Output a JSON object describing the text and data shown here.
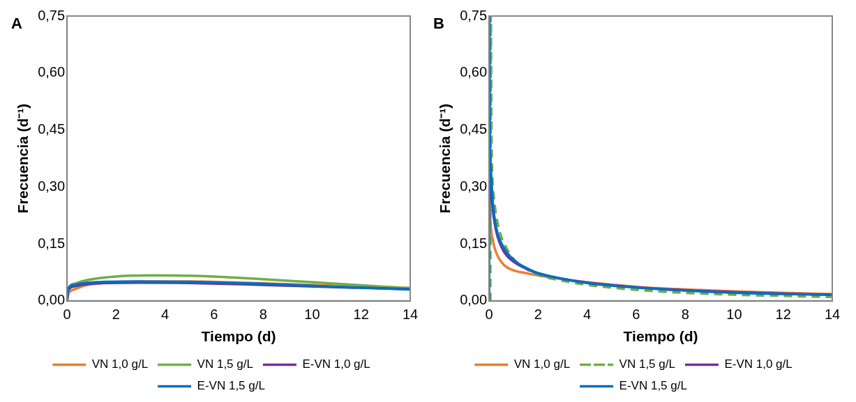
{
  "chart_data": [
    {
      "type": "line",
      "annotations": [
        "A"
      ],
      "xlabel": "Tiempo (d)",
      "ylabel": "Frecuencia (d⁻¹)",
      "xlim": [
        0,
        14
      ],
      "ylim": [
        0,
        0.75
      ],
      "xticks": [
        0,
        2,
        4,
        6,
        8,
        10,
        12,
        14
      ],
      "yticks": [
        {
          "value": 0,
          "label": "0,00"
        },
        {
          "value": 0.15,
          "label": "0,15"
        },
        {
          "value": 0.3,
          "label": "0,30"
        },
        {
          "value": 0.45,
          "label": "0,45"
        },
        {
          "value": 0.6,
          "label": "0,60"
        },
        {
          "value": 0.75,
          "label": "0,75"
        }
      ],
      "grid": false,
      "legend": "bottom",
      "marker": "none",
      "series": [
        {
          "name": "VN 1,0 g/L",
          "color": "#ed7d31",
          "x": [
            0,
            0.05,
            0.3,
            0.7,
            1.5,
            3,
            5,
            8,
            11,
            14
          ],
          "values": [
            0,
            0.018,
            0.03,
            0.04,
            0.047,
            0.051,
            0.051,
            0.046,
            0.04,
            0.034
          ]
        },
        {
          "name": "VN 1,5 g/L",
          "color": "#70ad47",
          "x": [
            0,
            0.05,
            0.3,
            0.7,
            1.5,
            2.5,
            3.5,
            5,
            6,
            8,
            10,
            12,
            14
          ],
          "values": [
            0,
            0.032,
            0.045,
            0.053,
            0.061,
            0.066,
            0.067,
            0.066,
            0.064,
            0.057,
            0.049,
            0.041,
            0.033
          ]
        },
        {
          "name": "E-VN 1,0 g/L",
          "color": "#7030a0",
          "x": [
            0,
            0.05,
            0.3,
            0.7,
            1.5,
            3,
            5,
            8,
            11,
            14
          ],
          "values": [
            0,
            0.028,
            0.038,
            0.043,
            0.047,
            0.048,
            0.047,
            0.042,
            0.036,
            0.031
          ]
        },
        {
          "name": "E-VN 1,5 g/L",
          "color": "#0070c0",
          "x": [
            0,
            0.05,
            0.3,
            0.7,
            1.5,
            3,
            5,
            8,
            11,
            14
          ],
          "values": [
            0,
            0.033,
            0.042,
            0.047,
            0.05,
            0.051,
            0.05,
            0.045,
            0.037,
            0.03
          ]
        }
      ]
    },
    {
      "type": "line",
      "annotations": [
        "B"
      ],
      "xlabel": "Tiempo (d)",
      "ylabel": "Frecuencia (d⁻¹)",
      "xlim": [
        0,
        14
      ],
      "ylim": [
        0,
        0.75
      ],
      "xticks": [
        0,
        2,
        4,
        6,
        8,
        10,
        12,
        14
      ],
      "yticks": [
        {
          "value": 0,
          "label": "0,00"
        },
        {
          "value": 0.15,
          "label": "0,15"
        },
        {
          "value": 0.3,
          "label": "0,30"
        },
        {
          "value": 0.45,
          "label": "0,45"
        },
        {
          "value": 0.6,
          "label": "0,60"
        },
        {
          "value": 0.75,
          "label": "0,75"
        }
      ],
      "grid": false,
      "legend": "bottom",
      "marker": "none",
      "series": [
        {
          "name": "VN 1,0 g/L",
          "color": "#ed7d31",
          "x": [
            0.02,
            0.05,
            0.15,
            0.3,
            0.6,
            1,
            1.5,
            2,
            3,
            4,
            6,
            8,
            10,
            12,
            14
          ],
          "values": [
            0.3,
            0.22,
            0.16,
            0.125,
            0.095,
            0.08,
            0.073,
            0.067,
            0.057,
            0.049,
            0.037,
            0.03,
            0.025,
            0.021,
            0.018
          ]
        },
        {
          "name": "VN 1,5 g/L",
          "color": "#70ad47",
          "line_style": "dashed",
          "x": [
            0.05,
            0.07,
            0.1,
            0.2,
            0.4,
            0.7,
            1,
            1.5,
            2,
            3,
            4,
            6,
            8,
            10,
            12,
            14
          ],
          "values": [
            0,
            0.75,
            0.42,
            0.27,
            0.19,
            0.14,
            0.11,
            0.085,
            0.068,
            0.053,
            0.042,
            0.029,
            0.021,
            0.016,
            0.013,
            0.01
          ]
        },
        {
          "name": "E-VN 1,0 g/L",
          "color": "#7030a0",
          "x": [
            0.02,
            0.05,
            0.15,
            0.3,
            0.6,
            1,
            1.5,
            2,
            3,
            4,
            6,
            8,
            10,
            12,
            14
          ],
          "values": [
            0.38,
            0.32,
            0.24,
            0.18,
            0.13,
            0.103,
            0.085,
            0.072,
            0.058,
            0.048,
            0.036,
            0.028,
            0.023,
            0.019,
            0.016
          ]
        },
        {
          "name": "E-VN 1,5 g/L",
          "color": "#0070c0",
          "x": [
            0,
            0.01,
            0.03,
            0.07,
            0.15,
            0.3,
            0.6,
            1,
            1.5,
            2,
            3,
            4,
            6,
            8,
            10,
            12,
            14
          ],
          "values": [
            0,
            0.75,
            0.45,
            0.35,
            0.26,
            0.19,
            0.14,
            0.108,
            0.087,
            0.073,
            0.058,
            0.047,
            0.035,
            0.027,
            0.021,
            0.018,
            0.016
          ]
        }
      ]
    }
  ]
}
